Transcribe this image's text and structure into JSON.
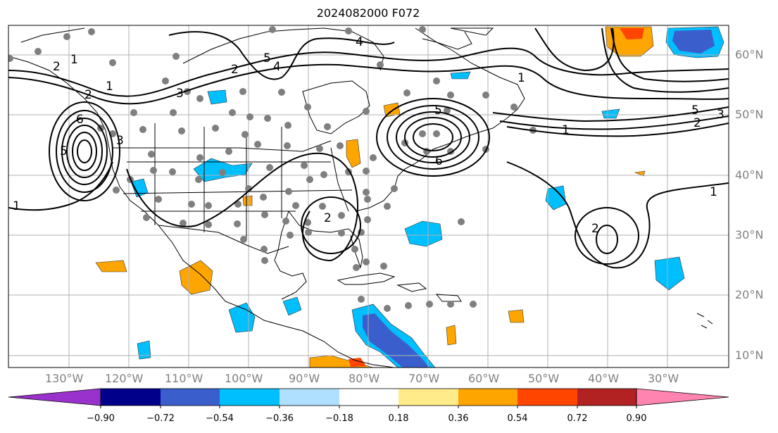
{
  "title": "2024082000 F072",
  "lat_labels": [
    "60°N",
    "50°N",
    "40°N",
    "30°N",
    "20°N",
    "10°N"
  ],
  "lon_labels": [
    "130°W",
    "120°W",
    "110°W",
    "100°W",
    "90°W",
    "80°W",
    "70°W",
    "60°W",
    "50°W",
    "40°W",
    "30°W"
  ],
  "colorbar": {
    "tick_labels": [
      "−0.90",
      "−0.72",
      "−0.54",
      "−0.36",
      "−0.18",
      "0.18",
      "0.36",
      "0.54",
      "0.72",
      "0.90"
    ],
    "colors": [
      "#9932cc",
      "#00008b",
      "#3a5fcd",
      "#00bfff",
      "#b0e0ff",
      "#ffffff",
      "#ffeb8a",
      "#ffa500",
      "#ff4500",
      "#b22222",
      "#ff85b0"
    ]
  },
  "contour_labels": [
    "1",
    "2",
    "3",
    "4",
    "5",
    "6",
    "5",
    "3",
    "2",
    "1",
    "2",
    "1",
    "5",
    "3",
    "2",
    "1",
    "1",
    "2",
    "4",
    "5",
    "1",
    "2",
    "6"
  ]
}
